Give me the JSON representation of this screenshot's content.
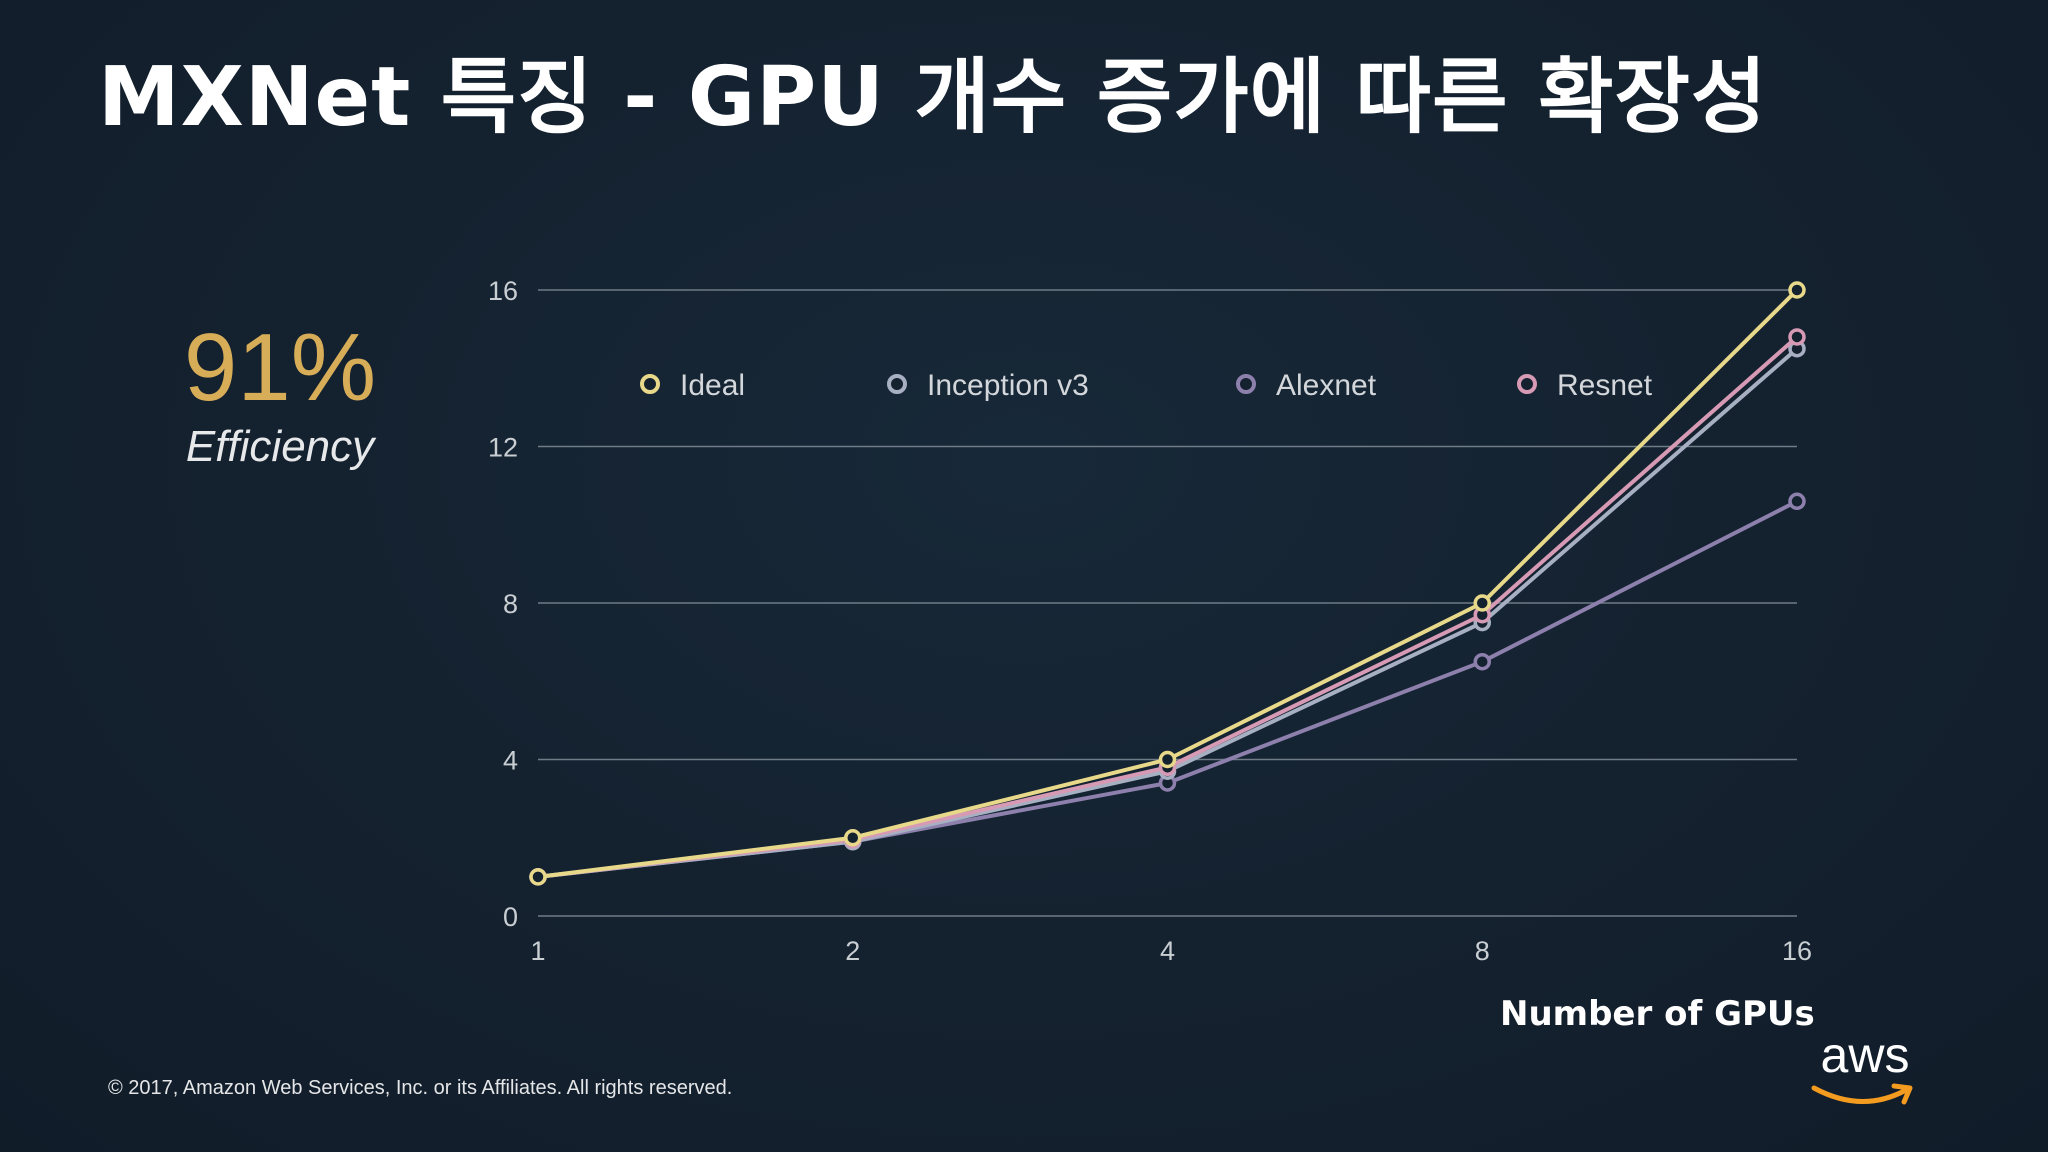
{
  "slide": {
    "title": "MXNet 특징 - GPU 개수 증가에 따른 확장성",
    "efficiency_value": "91%",
    "efficiency_label": "Efficiency",
    "copyright": "© 2017, Amazon Web Services, Inc. or its Affiliates. All rights reserved.",
    "logo_text": "aws",
    "logo_icon": "amazon-smile-icon"
  },
  "colors": {
    "background": "#14212f",
    "grid": "#6f7b86",
    "accent_efficiency": "#d8ad58",
    "logo_smile": "#f39c1f"
  },
  "chart_data": {
    "type": "line",
    "title": "",
    "xlabel": "Number of GPUs",
    "ylabel": "",
    "x": [
      1,
      2,
      4,
      8,
      16
    ],
    "x_scale": "log2",
    "ylim": [
      0,
      16
    ],
    "yticks": [
      0,
      4,
      8,
      12,
      16
    ],
    "grid": true,
    "legend_position": "top",
    "series": [
      {
        "name": "Ideal",
        "color": "#e8d98a",
        "values": [
          1,
          2,
          4,
          8,
          16
        ]
      },
      {
        "name": "Inception v3",
        "color": "#a7b0c2",
        "values": [
          1,
          1.9,
          3.7,
          7.5,
          14.5
        ]
      },
      {
        "name": "Alexnet",
        "color": "#8d80ad",
        "values": [
          1,
          1.9,
          3.4,
          6.5,
          10.6
        ]
      },
      {
        "name": "Resnet",
        "color": "#d79ab5",
        "values": [
          1,
          1.95,
          3.8,
          7.7,
          14.8
        ]
      }
    ]
  }
}
